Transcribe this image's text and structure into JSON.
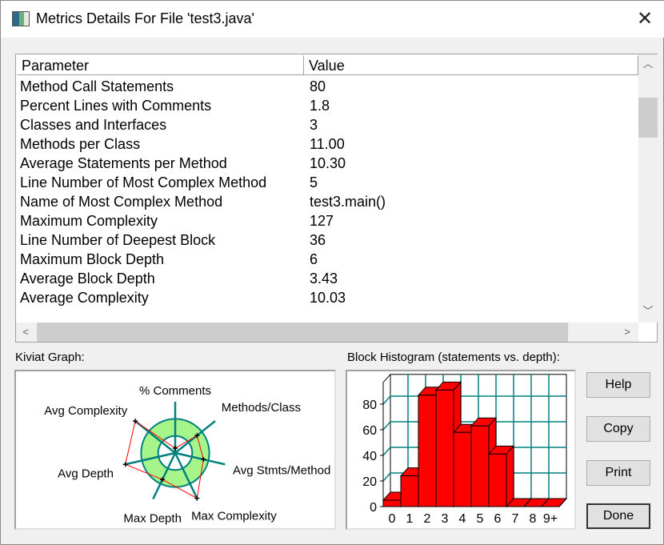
{
  "window": {
    "title": "Metrics Details For File 'test3.java'"
  },
  "table": {
    "headers": [
      "Parameter",
      "Value"
    ],
    "rows": [
      [
        "Method Call Statements",
        "80"
      ],
      [
        "Percent Lines with Comments",
        "1.8"
      ],
      [
        "Classes and Interfaces",
        "3"
      ],
      [
        "Methods per Class",
        "11.00"
      ],
      [
        "Average Statements per Method",
        "10.30"
      ],
      [
        "Line Number of Most Complex Method",
        "5"
      ],
      [
        "Name of Most Complex Method",
        "test3.main()"
      ],
      [
        "Maximum Complexity",
        "127"
      ],
      [
        "Line Number of Deepest Block",
        "36"
      ],
      [
        "Maximum Block Depth",
        "6"
      ],
      [
        "Average Block Depth",
        "3.43"
      ],
      [
        "Average Complexity",
        "10.03"
      ]
    ]
  },
  "labels": {
    "kiviat": "Kiviat Graph:",
    "histogram": "Block Histogram (statements vs. depth):"
  },
  "buttons": {
    "help": "Help",
    "copy": "Copy",
    "print": "Print",
    "done": "Done"
  },
  "chart_data": [
    {
      "type": "radar",
      "title": "Kiviat Graph:",
      "axes": [
        "% Comments",
        "Methods/Class",
        "Avg Stmts/Method",
        "Max Complexity",
        "Max Depth",
        "Avg Depth",
        "Avg Complexity"
      ],
      "values_relative_to_range": [
        0.28,
        1.64,
        1.7,
        2.95,
        1.73,
        3.0,
        3.0
      ],
      "range_band": [
        1,
        2
      ],
      "axis_max": 3,
      "colors": {
        "axis": "#008080",
        "band": "#a6f58a",
        "polygon": "#ff0000"
      }
    },
    {
      "type": "bar",
      "title": "Block Histogram (statements vs. depth):",
      "categories": [
        "0",
        "1",
        "2",
        "3",
        "4",
        "5",
        "6",
        "7",
        "8",
        "9+"
      ],
      "values": [
        5,
        24,
        87,
        91,
        58,
        63,
        41,
        0,
        0,
        0
      ],
      "yticks": [
        0,
        20,
        40,
        60,
        80
      ],
      "ylim": [
        0,
        97
      ],
      "grid": true,
      "colors": {
        "bar": "#ff0000",
        "grid": "#008080"
      }
    }
  ]
}
